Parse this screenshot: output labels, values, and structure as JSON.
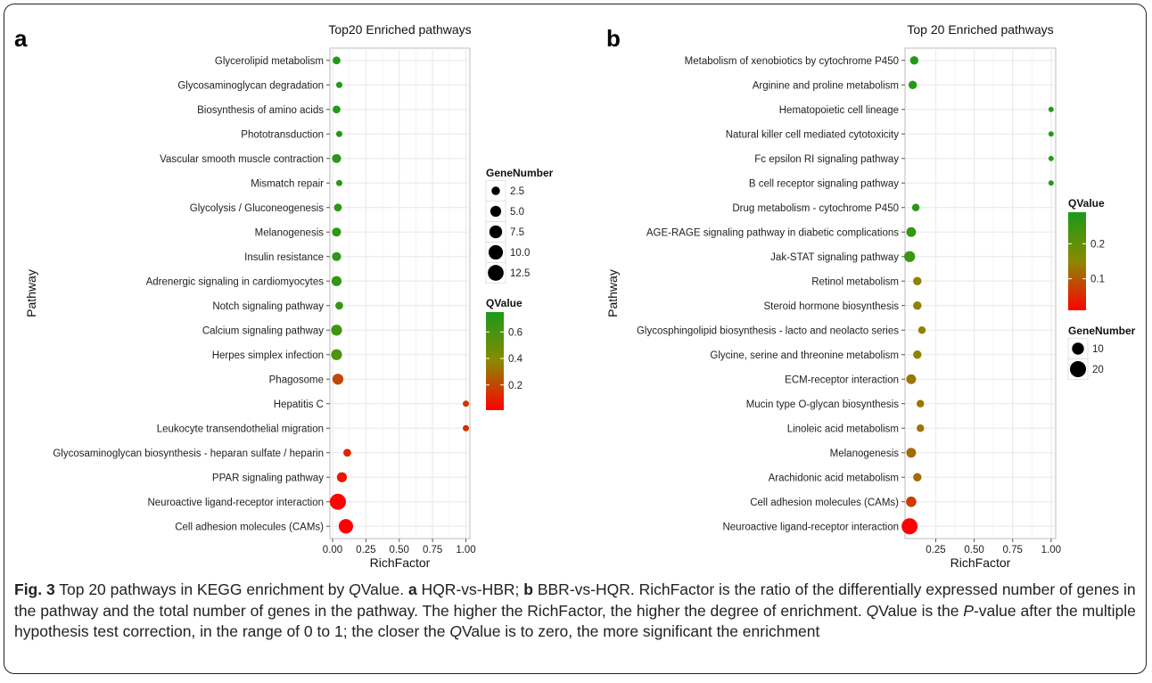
{
  "caption": {
    "label": "Fig. 3",
    "seg1": " Top 20 pathways in KEGG enrichment by ",
    "q1": "Q",
    "seg2": "Value. ",
    "a": "a",
    "seg3": " HQR-vs-HBR; ",
    "b": "b",
    "seg4": " BBR-vs-HQR. RichFactor is the ratio of the differentially expressed number of genes in the pathway and the total number of genes in the pathway. The higher the RichFactor, the higher the degree of enrichment. ",
    "q2": "Q",
    "seg5": "Value is the ",
    "p": "P",
    "seg6": "-value after the multiple hypothesis test correction, in the range of 0 to 1; the closer the ",
    "q3": "Q",
    "seg7": "Value is to zero, the more significant the enrichment"
  },
  "chart_data": [
    {
      "panel_label": "a",
      "type": "scatter",
      "title": "Top20 Enriched pathways",
      "xlabel": "RichFactor",
      "ylabel": "Pathway",
      "xlim": [
        -0.02,
        1.03
      ],
      "xticks": [
        0.0,
        0.25,
        0.5,
        0.75,
        1.0
      ],
      "xtick_labels": [
        "0.00",
        "0.25",
        "0.50",
        "0.75",
        "1.00"
      ],
      "grid": true,
      "size_legend": {
        "title": "GeneNumber",
        "values": [
          2.5,
          5.0,
          7.5,
          10.0,
          12.5
        ],
        "labels": [
          "2.5",
          "5.0",
          "7.5",
          "10.0",
          "12.5"
        ],
        "max": 13
      },
      "color_legend": {
        "title": "QValue",
        "min": 0.01,
        "max": 0.75,
        "ticks": [
          0.2,
          0.4,
          0.6
        ],
        "tick_labels": [
          "0.2",
          "0.4",
          "0.6"
        ]
      },
      "points": [
        {
          "pathway": "Glycerolipid metabolism",
          "x": 0.03,
          "size": 2,
          "q": 0.73
        },
        {
          "pathway": "Glycosaminoglycan degradation",
          "x": 0.05,
          "size": 1,
          "q": 0.73
        },
        {
          "pathway": "Biosynthesis of amino acids",
          "x": 0.03,
          "size": 2,
          "q": 0.72
        },
        {
          "pathway": "Phototransduction",
          "x": 0.05,
          "size": 1,
          "q": 0.72
        },
        {
          "pathway": "Vascular smooth muscle contraction",
          "x": 0.03,
          "size": 3,
          "q": 0.7
        },
        {
          "pathway": "Mismatch repair",
          "x": 0.05,
          "size": 1,
          "q": 0.7
        },
        {
          "pathway": "Glycolysis / Gluconeogenesis",
          "x": 0.04,
          "size": 2,
          "q": 0.69
        },
        {
          "pathway": "Melanogenesis",
          "x": 0.03,
          "size": 3,
          "q": 0.68
        },
        {
          "pathway": "Insulin resistance",
          "x": 0.03,
          "size": 3,
          "q": 0.67
        },
        {
          "pathway": "Adrenergic signaling in cardiomyocytes",
          "x": 0.03,
          "size": 4,
          "q": 0.66
        },
        {
          "pathway": "Notch signaling pathway",
          "x": 0.05,
          "size": 2,
          "q": 0.65
        },
        {
          "pathway": "Calcium signaling pathway",
          "x": 0.03,
          "size": 5,
          "q": 0.62
        },
        {
          "pathway": "Herpes simplex infection",
          "x": 0.03,
          "size": 5,
          "q": 0.58
        },
        {
          "pathway": "Phagosome",
          "x": 0.04,
          "size": 5,
          "q": 0.2
        },
        {
          "pathway": "Hepatitis C",
          "x": 1.0,
          "size": 1,
          "q": 0.15
        },
        {
          "pathway": "Leukocyte transendothelial migration",
          "x": 1.0,
          "size": 1,
          "q": 0.14
        },
        {
          "pathway": "Glycosaminoglycan biosynthesis - heparan sulfate / heparin",
          "x": 0.11,
          "size": 2,
          "q": 0.1
        },
        {
          "pathway": "PPAR signaling pathway",
          "x": 0.07,
          "size": 4,
          "q": 0.07
        },
        {
          "pathway": "Neuroactive ligand-receptor interaction",
          "x": 0.04,
          "size": 13,
          "q": 0.02
        },
        {
          "pathway": "Cell adhesion molecules (CAMs)",
          "x": 0.1,
          "size": 10,
          "q": 0.01
        }
      ]
    },
    {
      "panel_label": "b",
      "type": "scatter",
      "title": "Top 20 Enriched pathways",
      "xlabel": "RichFactor",
      "ylabel": "Pathway",
      "xlim": [
        0.05,
        1.03
      ],
      "xticks": [
        0.25,
        0.5,
        0.75,
        1.0
      ],
      "xtick_labels": [
        "0.25",
        "0.50",
        "0.75",
        "1.00"
      ],
      "grid": true,
      "size_legend": {
        "title": "GeneNumber",
        "values": [
          10,
          20
        ],
        "labels": [
          "10",
          "20"
        ],
        "max": 20
      },
      "color_legend": {
        "title": "QValue",
        "min": 0.01,
        "max": 0.29,
        "ticks": [
          0.1,
          0.2
        ],
        "tick_labels": [
          "0.1",
          "0.2"
        ]
      },
      "points": [
        {
          "pathway": "Metabolism of xenobiotics by cytochrome P450",
          "x": 0.11,
          "size": 4,
          "q": 0.28
        },
        {
          "pathway": "Arginine and proline metabolism",
          "x": 0.1,
          "size": 4,
          "q": 0.28
        },
        {
          "pathway": "Hematopoietic cell lineage",
          "x": 1.0,
          "size": 1,
          "q": 0.28
        },
        {
          "pathway": "Natural killer cell mediated cytotoxicity",
          "x": 1.0,
          "size": 1,
          "q": 0.28
        },
        {
          "pathway": "Fc epsilon RI signaling pathway",
          "x": 1.0,
          "size": 1,
          "q": 0.28
        },
        {
          "pathway": "B cell receptor signaling pathway",
          "x": 1.0,
          "size": 1,
          "q": 0.28
        },
        {
          "pathway": "Drug metabolism - cytochrome P450",
          "x": 0.12,
          "size": 3,
          "q": 0.27
        },
        {
          "pathway": "AGE-RAGE signaling pathway in diabetic complications",
          "x": 0.09,
          "size": 6,
          "q": 0.26
        },
        {
          "pathway": "Jak-STAT signaling pathway",
          "x": 0.08,
          "size": 8,
          "q": 0.25
        },
        {
          "pathway": "Retinol metabolism",
          "x": 0.13,
          "size": 4,
          "q": 0.14
        },
        {
          "pathway": "Steroid hormone biosynthesis",
          "x": 0.13,
          "size": 4,
          "q": 0.14
        },
        {
          "pathway": "Glycosphingolipid biosynthesis - lacto and neolacto series",
          "x": 0.16,
          "size": 3,
          "q": 0.14
        },
        {
          "pathway": "Glycine, serine and threonine metabolism",
          "x": 0.13,
          "size": 4,
          "q": 0.14
        },
        {
          "pathway": "ECM-receptor interaction",
          "x": 0.09,
          "size": 6,
          "q": 0.13
        },
        {
          "pathway": "Mucin type O-glycan biosynthesis",
          "x": 0.15,
          "size": 3,
          "q": 0.13
        },
        {
          "pathway": "Linoleic acid metabolism",
          "x": 0.15,
          "size": 3,
          "q": 0.13
        },
        {
          "pathway": "Melanogenesis",
          "x": 0.09,
          "size": 6,
          "q": 0.12
        },
        {
          "pathway": "Arachidonic acid metabolism",
          "x": 0.13,
          "size": 4,
          "q": 0.12
        },
        {
          "pathway": "Cell adhesion molecules (CAMs)",
          "x": 0.09,
          "size": 7,
          "q": 0.07
        },
        {
          "pathway": "Neuroactive ligand-receptor interaction",
          "x": 0.08,
          "size": 20,
          "q": 0.01
        }
      ]
    }
  ],
  "colors": {
    "low_q": "#ff0000",
    "mid_q": "#8a8a00",
    "high_q": "#1a9a1a",
    "grid": "#ebebeb",
    "frame": "#222222"
  }
}
